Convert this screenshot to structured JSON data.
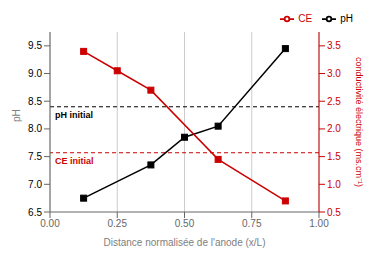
{
  "chart_data": {
    "type": "line",
    "xlabel": "Distance normalisée de l'anode (x/L)",
    "ylabel": "pH",
    "y2label": "conductivité électrique (ms.cm⁻¹)",
    "xlim": [
      0.0,
      1.0
    ],
    "xticks": [
      {
        "value": 0.0,
        "label": "0.00"
      },
      {
        "value": 0.25,
        "label": "0.25"
      },
      {
        "value": 0.5,
        "label": "0.50"
      },
      {
        "value": 0.75,
        "label": "0.75"
      },
      {
        "value": 1.0,
        "label": "1.00"
      }
    ],
    "ylim": [
      6.5,
      9.75
    ],
    "yticks": [
      6.5,
      {
        "value": 7.0,
        "label": "7.0"
      },
      7.5,
      {
        "value": 8.0,
        "label": "8.0"
      },
      8.5,
      {
        "value": 9.0,
        "label": "9.0"
      },
      9.5
    ],
    "y2lim": [
      0.5,
      3.75
    ],
    "y2ticks": [
      0.5,
      {
        "value": 1.0,
        "label": "1.0"
      },
      1.5,
      {
        "value": 2.0,
        "label": "2.0"
      },
      2.5,
      {
        "value": 3.0,
        "label": "3.0"
      },
      3.5
    ],
    "grid": "x",
    "legend": "upper right",
    "series": [
      {
        "name": "pH",
        "color": "#000000",
        "marker": "square",
        "x": [
          0.125,
          0.375,
          0.5,
          0.625,
          0.875
        ],
        "values": [
          6.75,
          7.35,
          7.85,
          8.05,
          9.45
        ]
      },
      {
        "name": "CE",
        "color": "#cc0000",
        "marker": "square",
        "axis": "y2",
        "x": [
          0.125,
          0.25,
          0.375,
          0.625,
          0.875
        ],
        "values": [
          3.4,
          3.05,
          2.7,
          1.45,
          0.7
        ]
      }
    ],
    "annotations": [
      {
        "text": "pH initial",
        "y": 8.4,
        "line_style": "dashed"
      },
      {
        "text": "CE initial",
        "y": 1.57,
        "axis": "y2",
        "line_style": "dashed"
      }
    ]
  }
}
